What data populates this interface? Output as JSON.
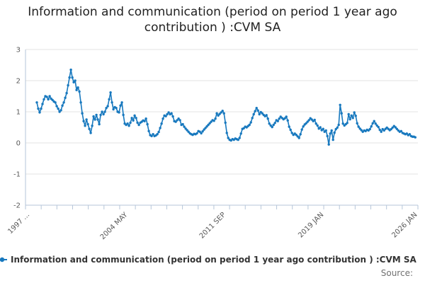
{
  "page": {
    "title": "Information and communication (period on period 1 year ago contribution ) :CVM SA",
    "source_label": "Source:"
  },
  "chart_data": {
    "type": "line",
    "title": "Information and communication (period on period 1 year ago contribution ) :CVM SA",
    "xlabel": "",
    "ylabel": "",
    "xlim": [
      1997,
      2026.35
    ],
    "ylim": [
      -2,
      3
    ],
    "grid": "horizontal",
    "legend_position": "bottom-left",
    "marker": "dot",
    "y_ticks": [
      3,
      2,
      1,
      0,
      -1,
      -2
    ],
    "x_ticks": [
      {
        "label": "1997 ...",
        "year": 1997
      },
      {
        "label": "2004 MAY",
        "year": 2004.33
      },
      {
        "label": "2011 SEP",
        "year": 2011.67
      },
      {
        "label": "2019 JAN",
        "year": 2019
      },
      {
        "label": "2026 JAN",
        "year": 2026
      }
    ],
    "minor_tick_count": 26,
    "colors": {
      "line": "#1778be",
      "axis": "#b6c6d9",
      "grid": "#e3e3e3",
      "tick_label": "#595959",
      "title": "#222222",
      "legend_text": "#333333",
      "source": "#707070"
    },
    "series": [
      {
        "name": "Information and communication (period on period 1 year ago contribution ) :CVM SA",
        "color": "#1778be",
        "x_start": 1997.85,
        "x_step": 0.106,
        "values": [
          1.3,
          1.1,
          0.98,
          1.1,
          1.25,
          1.4,
          1.5,
          1.48,
          1.4,
          1.5,
          1.42,
          1.38,
          1.33,
          1.3,
          1.18,
          1.1,
          1.0,
          1.05,
          1.2,
          1.3,
          1.45,
          1.6,
          1.85,
          2.1,
          2.35,
          2.1,
          1.95,
          2.0,
          1.7,
          1.78,
          1.65,
          1.3,
          0.95,
          0.7,
          0.55,
          0.75,
          0.6,
          0.45,
          0.32,
          0.55,
          0.85,
          0.75,
          0.9,
          0.75,
          0.6,
          0.9,
          1.0,
          0.92,
          1.0,
          1.12,
          1.18,
          1.4,
          1.62,
          1.3,
          1.08,
          1.15,
          1.12,
          1.0,
          0.98,
          1.2,
          1.3,
          0.9,
          0.62,
          0.58,
          0.62,
          0.55,
          0.65,
          0.8,
          0.72,
          0.88,
          0.8,
          0.65,
          0.58,
          0.65,
          0.68,
          0.72,
          0.7,
          0.78,
          0.6,
          0.38,
          0.25,
          0.22,
          0.28,
          0.22,
          0.24,
          0.28,
          0.35,
          0.48,
          0.62,
          0.78,
          0.88,
          0.86,
          0.92,
          0.98,
          0.92,
          0.95,
          0.85,
          0.7,
          0.68,
          0.73,
          0.78,
          0.73,
          0.58,
          0.6,
          0.52,
          0.46,
          0.41,
          0.36,
          0.31,
          0.28,
          0.26,
          0.29,
          0.28,
          0.31,
          0.38,
          0.36,
          0.31,
          0.37,
          0.43,
          0.48,
          0.53,
          0.58,
          0.63,
          0.68,
          0.73,
          0.71,
          0.78,
          0.95,
          0.88,
          0.93,
          0.98,
          1.03,
          0.95,
          0.65,
          0.32,
          0.16,
          0.1,
          0.08,
          0.12,
          0.1,
          0.14,
          0.12,
          0.1,
          0.16,
          0.3,
          0.45,
          0.47,
          0.52,
          0.5,
          0.54,
          0.58,
          0.66,
          0.8,
          0.92,
          1.02,
          1.12,
          1.04,
          0.92,
          0.99,
          0.95,
          0.9,
          0.86,
          0.89,
          0.78,
          0.62,
          0.56,
          0.51,
          0.58,
          0.64,
          0.73,
          0.7,
          0.78,
          0.84,
          0.8,
          0.76,
          0.79,
          0.84,
          0.72,
          0.52,
          0.42,
          0.32,
          0.26,
          0.3,
          0.26,
          0.21,
          0.16,
          0.28,
          0.43,
          0.53,
          0.59,
          0.63,
          0.68,
          0.73,
          0.79,
          0.75,
          0.7,
          0.74,
          0.62,
          0.56,
          0.46,
          0.5,
          0.41,
          0.45,
          0.36,
          0.4,
          0.22,
          -0.05,
          0.3,
          0.4,
          0.1,
          0.33,
          0.44,
          0.49,
          0.58,
          1.22,
          0.95,
          0.62,
          0.56,
          0.6,
          0.64,
          0.92,
          0.76,
          0.88,
          0.8,
          0.98,
          0.87,
          0.63,
          0.52,
          0.46,
          0.41,
          0.36,
          0.4,
          0.38,
          0.42,
          0.4,
          0.44,
          0.53,
          0.63,
          0.7,
          0.62,
          0.56,
          0.51,
          0.42,
          0.36,
          0.44,
          0.4,
          0.45,
          0.49,
          0.45,
          0.41,
          0.44,
          0.49,
          0.54,
          0.5,
          0.45,
          0.4,
          0.36,
          0.38,
          0.32,
          0.3,
          0.28,
          0.3,
          0.25,
          0.28,
          0.22,
          0.2,
          0.2,
          0.18
        ]
      }
    ]
  }
}
